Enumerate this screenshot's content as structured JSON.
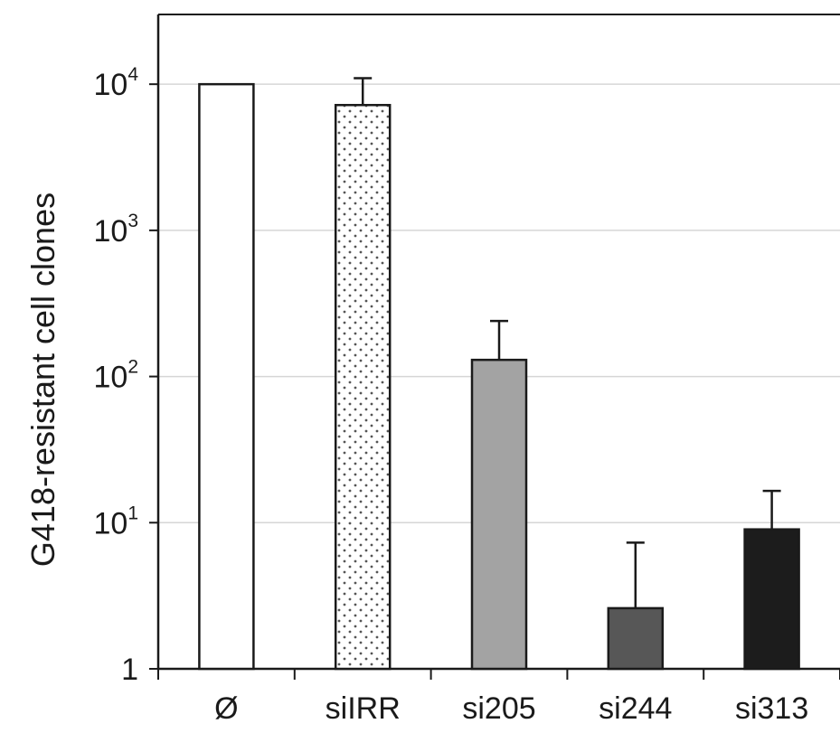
{
  "chart_data": {
    "type": "bar",
    "title": "",
    "xlabel": "",
    "ylabel": "G418-resistant cell clones",
    "yscale": "log",
    "ylim": [
      1,
      30000
    ],
    "grid": "horizontal",
    "y_ticks": [
      {
        "value": 1,
        "base": "1",
        "exp": ""
      },
      {
        "value": 10,
        "base": "10",
        "exp": "1"
      },
      {
        "value": 100,
        "base": "10",
        "exp": "2"
      },
      {
        "value": 1000,
        "base": "10",
        "exp": "3"
      },
      {
        "value": 10000,
        "base": "10",
        "exp": "4"
      }
    ],
    "categories": [
      "Ø",
      "siIRR",
      "si205",
      "si244",
      "si313"
    ],
    "values": [
      10000,
      7200,
      130,
      2.6,
      9
    ],
    "error_upper": [
      null,
      11000,
      240,
      7.3,
      16.5
    ],
    "fills": [
      "#ffffff",
      "dotted",
      "#a3a3a3",
      "#575757",
      "#1c1c1c"
    ]
  }
}
